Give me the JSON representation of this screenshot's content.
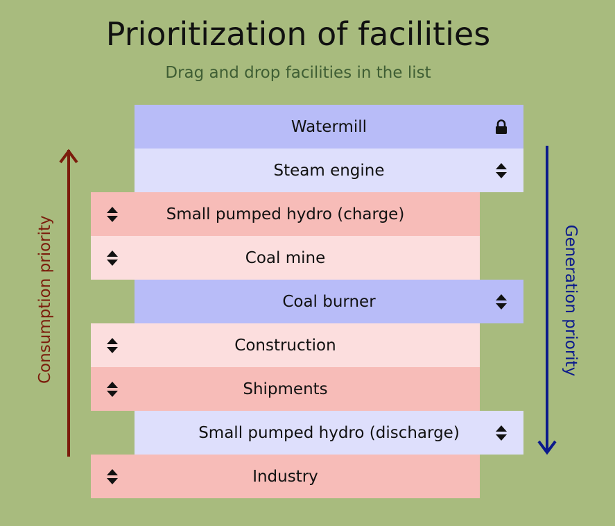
{
  "title": "Prioritization of facilities",
  "subtitle": "Drag and drop facilities in the list",
  "consumption_label": "Consumption priority",
  "generation_label": "Generation priority",
  "colors": {
    "background": "#a8bb7e",
    "generation_primary": "#b8bcf8",
    "generation_secondary": "#dedffc",
    "consumption_primary": "#f7bcb8",
    "consumption_secondary": "#fcdede",
    "consumption_arrow": "#7b1c0c",
    "generation_arrow": "#0b1a8c"
  },
  "facilities": [
    {
      "label": "Watermill",
      "kind": "generation",
      "shade": "primary",
      "icon": "lock-icon",
      "locked": true
    },
    {
      "label": "Steam engine",
      "kind": "generation",
      "shade": "secondary",
      "icon": "drag-handle-icon",
      "locked": false
    },
    {
      "label": "Small pumped hydro (charge)",
      "kind": "consumption",
      "shade": "primary",
      "icon": "drag-handle-icon",
      "locked": false
    },
    {
      "label": "Coal mine",
      "kind": "consumption",
      "shade": "secondary",
      "icon": "drag-handle-icon",
      "locked": false
    },
    {
      "label": "Coal burner",
      "kind": "generation",
      "shade": "primary",
      "icon": "drag-handle-icon",
      "locked": false
    },
    {
      "label": "Construction",
      "kind": "consumption",
      "shade": "secondary",
      "icon": "drag-handle-icon",
      "locked": false
    },
    {
      "label": "Shipments",
      "kind": "consumption",
      "shade": "primary",
      "icon": "drag-handle-icon",
      "locked": false
    },
    {
      "label": "Small pumped hydro (discharge)",
      "kind": "generation",
      "shade": "secondary",
      "icon": "drag-handle-icon",
      "locked": false
    },
    {
      "label": "Industry",
      "kind": "consumption",
      "shade": "primary",
      "icon": "drag-handle-icon",
      "locked": false
    }
  ]
}
